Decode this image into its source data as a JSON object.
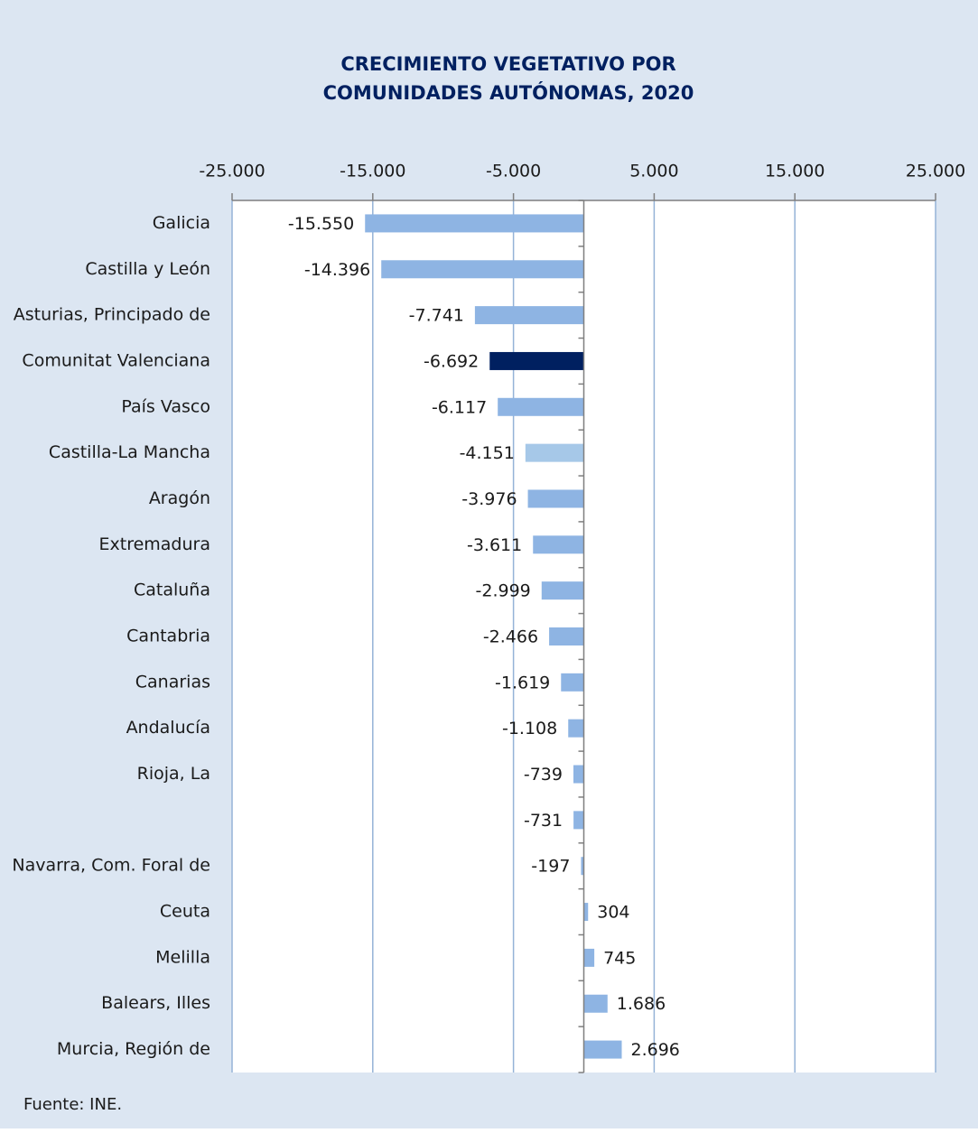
{
  "chart_data": {
    "type": "barh",
    "title": [
      "CRECIMIENTO VEGETATIVO POR",
      "COMUNIDADES AUTÓNOMAS, 2020"
    ],
    "categories": [
      "Galicia",
      "Castilla y León",
      "Asturias, Principado de",
      "Comunitat Valenciana",
      "País Vasco",
      "Castilla-La Mancha",
      "Aragón",
      "Extremadura",
      "Cataluña",
      "Cantabria",
      "Canarias",
      "Andalucía",
      "Rioja, La",
      null,
      "Navarra, Com. Foral de",
      "Ceuta",
      "Melilla",
      "Balears, Illes",
      "Murcia, Región de"
    ],
    "values": [
      -15550,
      -14396,
      -7741,
      -6692,
      -6117,
      -4151,
      -3976,
      -3611,
      -2999,
      -2466,
      -1619,
      -1108,
      -739,
      -731,
      -197,
      304,
      745,
      1686,
      2696
    ],
    "value_labels": [
      "-15.550",
      "-14.396",
      "-7.741",
      "-6.692",
      "-6.117",
      "-4.151",
      "-3.976",
      "-3.611",
      "-2.999",
      "-2.466",
      "-1.619",
      "-1.108",
      "-739",
      "-731",
      "-197",
      "304",
      "745",
      "1.686",
      "2.696"
    ],
    "colors": [
      "#8eb4e3",
      "#8eb4e3",
      "#8eb4e3",
      "#002060",
      "#8eb4e3",
      "#a6c8e8",
      "#8eb4e3",
      "#8eb4e3",
      "#8eb4e3",
      "#8eb4e3",
      "#8eb4e3",
      "#8eb4e3",
      "#8eb4e3",
      "#8eb4e3",
      "#8eb4e3",
      "#8eb4e3",
      "#8eb4e3",
      "#8eb4e3",
      "#8eb4e3"
    ],
    "xlim": [
      -25000,
      25000
    ],
    "xticks": [
      {
        "value": -25000,
        "label": "-25.000"
      },
      {
        "value": -15000,
        "label": "-15.000"
      },
      {
        "value": -5000,
        "label": "-5.000"
      },
      {
        "value": 5000,
        "label": "5.000"
      },
      {
        "value": 15000,
        "label": "15.000"
      },
      {
        "value": 25000,
        "label": "25.000"
      }
    ],
    "grid": true,
    "source": "Fuente: INE."
  }
}
